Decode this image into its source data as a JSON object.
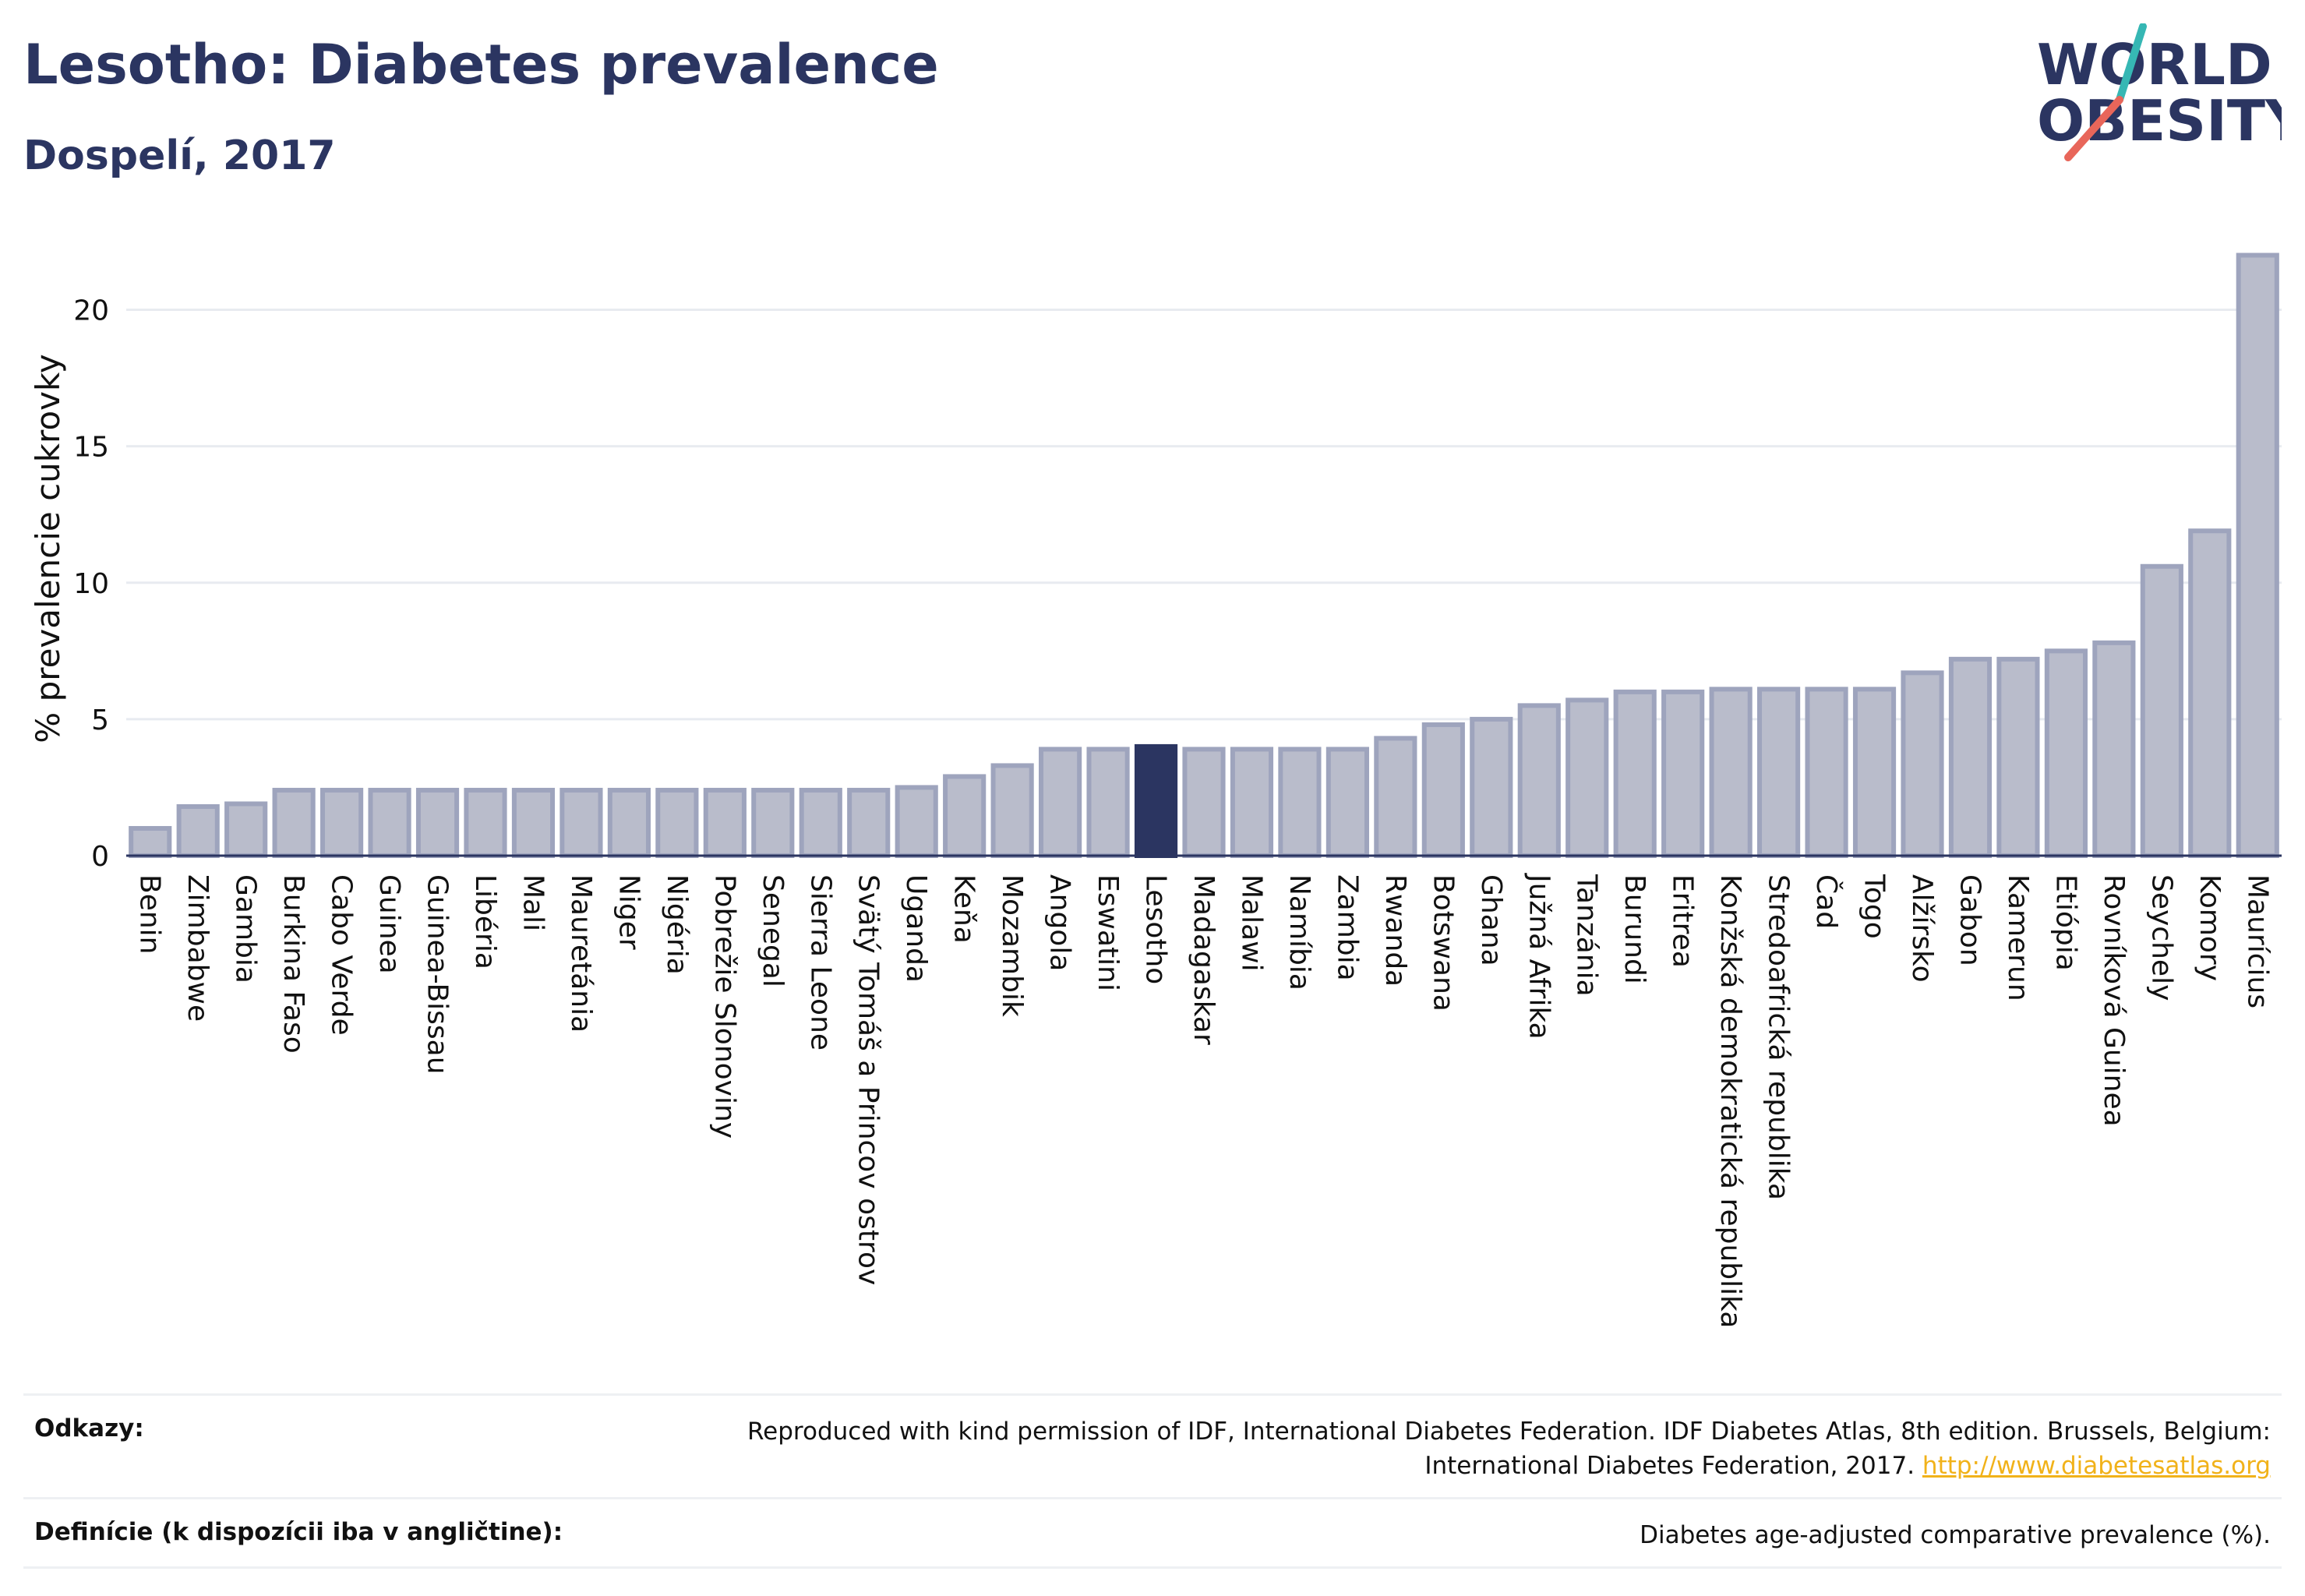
{
  "header": {
    "title": "Lesotho: Diabetes prevalence",
    "subtitle": "Dospelí, 2017"
  },
  "logo": {
    "line1": "WORLD",
    "line2": "OBESITY",
    "icon": "world-obesity-logo"
  },
  "colors": {
    "bar": "#b9bccb",
    "bar_border": "#9ea4bd",
    "highlight": "#2b3561",
    "grid": "#e8ebf0",
    "axis": "#2b3561",
    "link": "#f1b21a"
  },
  "chart_data": {
    "type": "bar",
    "ylabel": "% prevalencie cukrovky",
    "xlabel": "",
    "ylim": [
      0,
      22.5
    ],
    "yticks": [
      0,
      5,
      10,
      15,
      20
    ],
    "grid": true,
    "highlight": "Lesotho",
    "categories": [
      "Benin",
      "Zimbabwe",
      "Gambia",
      "Burkina Faso",
      "Cabo Verde",
      "Guinea",
      "Guinea-Bissau",
      "Libéria",
      "Mali",
      "Mauretánia",
      "Niger",
      "Nigéria",
      "Pobrežie Slonoviny",
      "Senegal",
      "Sierra Leone",
      "Svätý Tomáš a Princov ostrov",
      "Uganda",
      "Keňa",
      "Mozambik",
      "Angola",
      "Eswatini",
      "Lesotho",
      "Madagaskar",
      "Malawi",
      "Namíbia",
      "Zambia",
      "Rwanda",
      "Botswana",
      "Ghana",
      "Južná Afrika",
      "Tanzánia",
      "Burundi",
      "Eritrea",
      "Konžská demokratická republika",
      "Stredoafrická republika",
      "Čad",
      "Togo",
      "Alžírsko",
      "Gabon",
      "Kamerun",
      "Etiópia",
      "Rovníková Guinea",
      "Seychely",
      "Komory",
      "Maurícius"
    ],
    "values": [
      1.0,
      1.8,
      1.9,
      2.4,
      2.4,
      2.4,
      2.4,
      2.4,
      2.4,
      2.4,
      2.4,
      2.4,
      2.4,
      2.4,
      2.4,
      2.4,
      2.5,
      2.9,
      3.3,
      3.9,
      3.9,
      4.0,
      3.9,
      3.9,
      3.9,
      3.9,
      4.3,
      4.8,
      5.0,
      5.5,
      5.7,
      6.0,
      6.0,
      6.1,
      6.1,
      6.1,
      6.1,
      6.7,
      7.2,
      7.2,
      7.5,
      7.8,
      10.6,
      11.9,
      22.0
    ]
  },
  "footer": {
    "references_label": "Odkazy:",
    "references_text": "Reproduced with kind permission of IDF, International Diabetes Federation. IDF Diabetes Atlas, 8th edition. Brussels, Belgium: International Diabetes Federation, 2017.",
    "references_link": "http://www.diabetesatlas.org",
    "definition_label": "Definície (k dispozícii iba v angličtine):",
    "definition_text": "Diabetes age-adjusted comparative prevalence (%)."
  }
}
